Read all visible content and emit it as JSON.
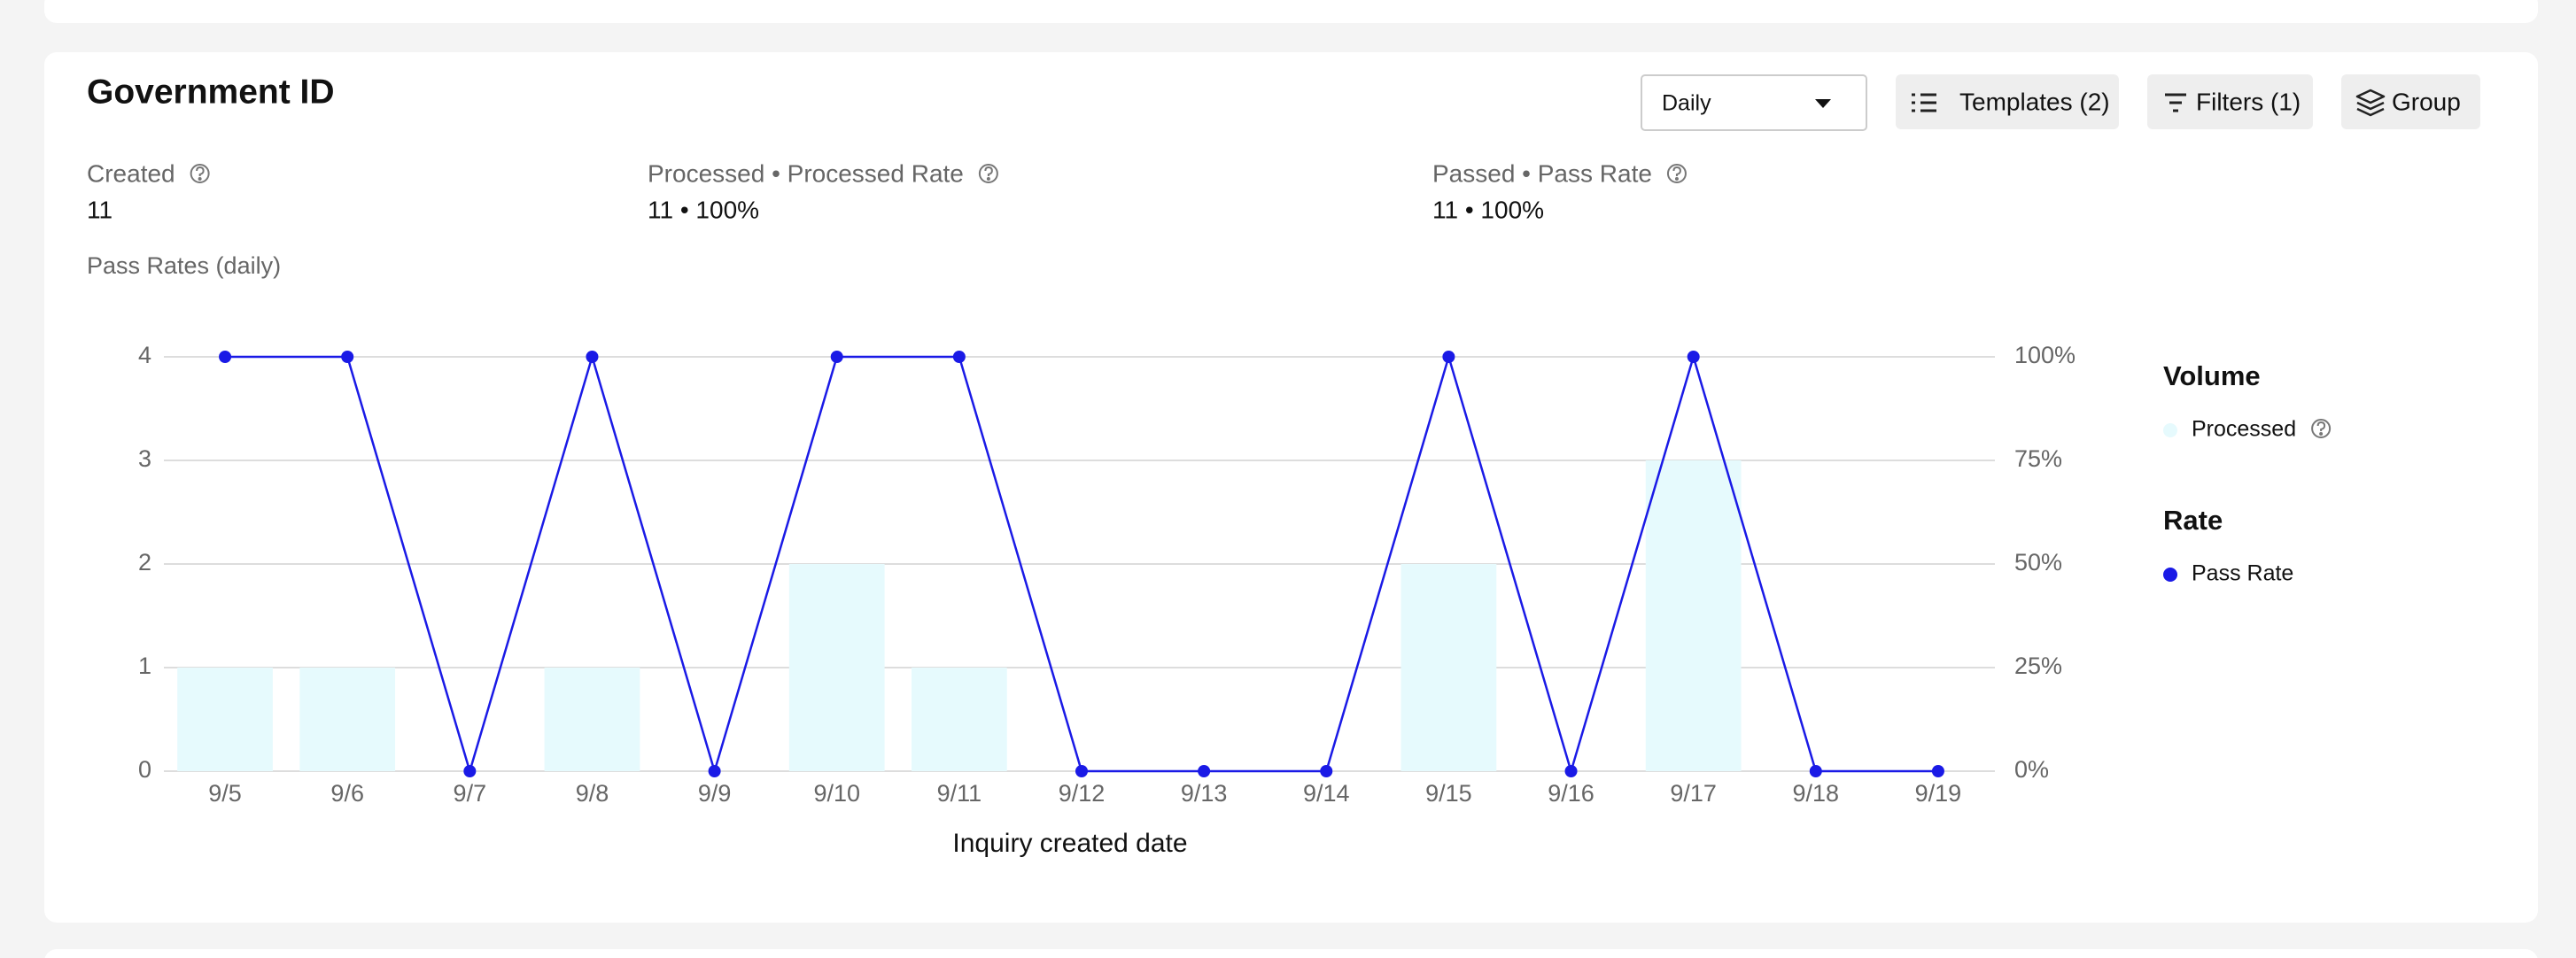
{
  "header": {
    "title": "Government ID"
  },
  "controls": {
    "interval": "Daily",
    "templates": "Templates (2)",
    "filters": "Filters (1)",
    "group": "Group"
  },
  "metrics": [
    {
      "label": "Created",
      "value": "11"
    },
    {
      "label": "Processed • Processed Rate",
      "value": "11 • 100%"
    },
    {
      "label": "Passed • Pass Rate",
      "value": "11 • 100%"
    }
  ],
  "chart_data": {
    "type": "combo",
    "title": "Pass Rates (daily)",
    "x_label": "Inquiry created date",
    "categories": [
      "9/5",
      "9/6",
      "9/7",
      "9/8",
      "9/9",
      "9/10",
      "9/11",
      "9/12",
      "9/13",
      "9/14",
      "9/15",
      "9/16",
      "9/17",
      "9/18",
      "9/19"
    ],
    "series": [
      {
        "name": "Processed",
        "type": "bar",
        "color": "#e6fafd",
        "values": [
          1,
          1,
          0,
          1,
          0,
          2,
          1,
          0,
          0,
          0,
          2,
          0,
          3,
          0,
          0
        ]
      },
      {
        "name": "Pass Rate",
        "type": "line",
        "axis": "y2",
        "color": "#1a1ae6",
        "values": [
          100,
          100,
          0,
          100,
          0,
          100,
          100,
          0,
          0,
          0,
          100,
          0,
          100,
          0,
          0
        ]
      }
    ],
    "legend_groups": [
      "Volume",
      "Rate"
    ],
    "legend": "right",
    "grid": true,
    "ylim": [
      0,
      4
    ],
    "yticks": [
      0,
      1,
      2,
      3,
      4
    ],
    "y2lim": [
      0,
      100
    ],
    "y2ticks": [
      {
        "value": 0,
        "label": "0%"
      },
      {
        "value": 25,
        "label": "25%"
      },
      {
        "value": 50,
        "label": "50%"
      },
      {
        "value": 75,
        "label": "75%"
      },
      {
        "value": 100,
        "label": "100%"
      }
    ]
  }
}
